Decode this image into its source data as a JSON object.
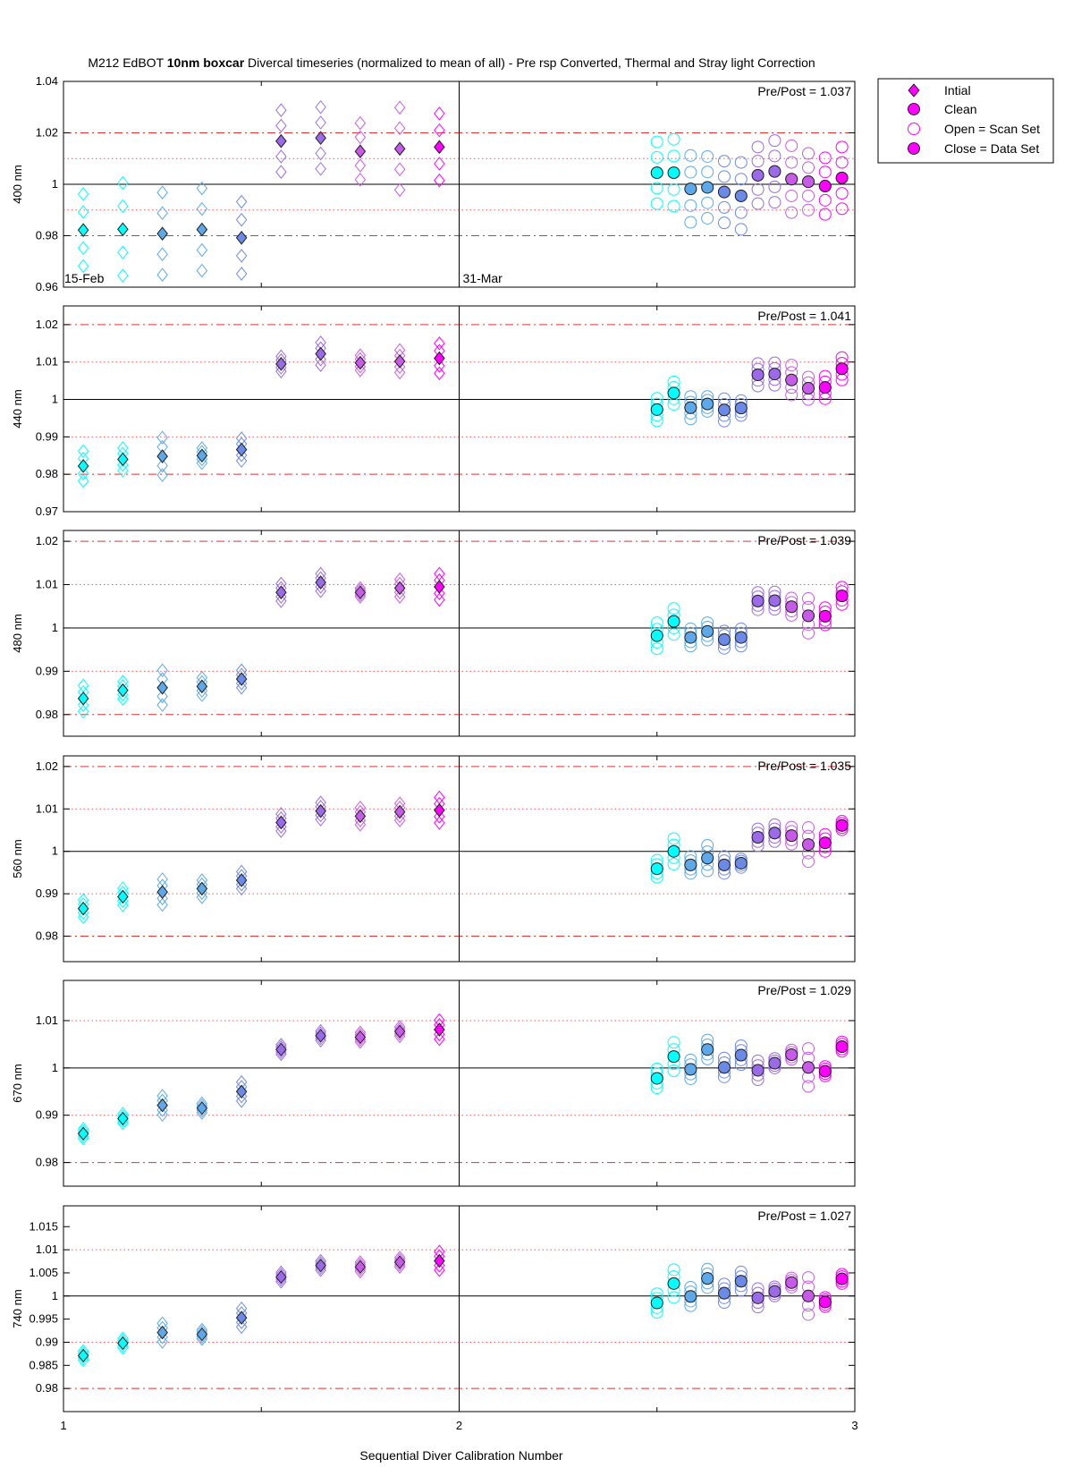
{
  "title": {
    "prefix": "M212  EdBOT",
    "bold": "10nm boxcar",
    "suffix": "Divercal timeseries (normalized to mean of all) - Pre rsp Converted, Thermal and Stray light Correction"
  },
  "xlabel": "Sequential Diver Calibration Number",
  "xticks": [
    "1",
    "2",
    "3"
  ],
  "xlim": [
    1,
    3
  ],
  "date_labels": [
    "15-Feb",
    "31-Mar"
  ],
  "colors": {
    "cyan": "#00ffff",
    "light_blue": "#5ca8e8",
    "blue": "#6b8ae8",
    "purple": "#9a6ae8",
    "violet": "#c85ae8",
    "magenta": "#ff00ff",
    "ref_dashdot": "#e53030",
    "ref_dotted": "#ff5555"
  },
  "legend": {
    "entries": [
      "Intial",
      "Clean",
      "Open = Scan Set",
      "Close = Data Set"
    ]
  },
  "chart_data": [
    {
      "type": "scatter",
      "ylabel": "400 nm",
      "ylim": [
        0.96,
        1.04
      ],
      "yticks": [
        "0.96",
        "0.98",
        "1",
        "1.02",
        "1.04"
      ],
      "ratio_text": "Pre/Post = 1.037",
      "show_dates": true,
      "ref_dashdot": [
        0.98,
        1.02
      ],
      "ref_dotted": [
        0.99,
        1.01
      ],
      "initial_means": [
        0.9822,
        0.9825,
        0.9808,
        0.9824,
        0.9792,
        1.0168,
        1.018,
        1.0128,
        1.0138,
        1.0145
      ],
      "initial_spread": [
        0.014,
        0.018,
        0.016,
        0.016,
        0.014,
        0.012,
        0.012,
        0.011,
        0.016,
        0.013
      ],
      "clean_means": [
        1.0045,
        1.0045,
        0.9982,
        0.9988,
        0.997,
        0.9955,
        1.0035,
        1.005,
        1.002,
        1.001,
        0.9993,
        1.0025
      ],
      "clean_spread": [
        0.012,
        0.013,
        0.013,
        0.012,
        0.012,
        0.013,
        0.011,
        0.012,
        0.013,
        0.011,
        0.011,
        0.012
      ]
    },
    {
      "type": "scatter",
      "ylabel": "440 nm",
      "ylim": [
        0.97,
        1.025
      ],
      "yticks": [
        "0.97",
        "0.98",
        "0.99",
        "1",
        "1.01",
        "1.02"
      ],
      "ratio_text": "Pre/Post = 1.041",
      "show_dates": false,
      "ref_dashdot": [
        0.98,
        1.02
      ],
      "ref_dotted": [
        0.99,
        1.01
      ],
      "initial_means": [
        0.9822,
        0.984,
        0.9848,
        0.985,
        0.9866,
        1.0095,
        1.0122,
        1.0098,
        1.0102,
        1.011
      ],
      "initial_spread": [
        0.004,
        0.003,
        0.005,
        0.002,
        0.003,
        0.002,
        0.003,
        0.002,
        0.003,
        0.004
      ],
      "clean_means": [
        0.9973,
        1.0017,
        0.9978,
        0.9988,
        0.9972,
        0.9977,
        1.0066,
        1.0068,
        1.0052,
        1.003,
        1.0032,
        1.0082
      ],
      "clean_spread": [
        0.003,
        0.003,
        0.003,
        0.002,
        0.003,
        0.002,
        0.003,
        0.003,
        0.004,
        0.003,
        0.003,
        0.003
      ]
    },
    {
      "type": "scatter",
      "ylabel": "480 nm",
      "ylim": [
        0.975,
        1.0225
      ],
      "yticks": [
        "0.98",
        "0.99",
        "1",
        "1.01",
        "1.02"
      ],
      "ratio_text": "Pre/Post = 1.039",
      "show_dates": false,
      "ref_dashdot": [
        0.98,
        1.02
      ],
      "ref_dotted": [
        0.99,
        1.01
      ],
      "initial_means": [
        0.9837,
        0.9856,
        0.9862,
        0.9865,
        0.9882,
        1.0082,
        1.0105,
        1.0082,
        1.0092,
        1.0095
      ],
      "initial_spread": [
        0.003,
        0.002,
        0.004,
        0.002,
        0.002,
        0.002,
        0.002,
        0.001,
        0.002,
        0.003
      ],
      "clean_means": [
        0.9982,
        1.0015,
        0.9978,
        0.9992,
        0.9973,
        0.9978,
        1.0062,
        1.0063,
        1.0049,
        1.0028,
        1.0027,
        1.0074
      ],
      "clean_spread": [
        0.003,
        0.003,
        0.002,
        0.002,
        0.002,
        0.002,
        0.002,
        0.002,
        0.002,
        0.004,
        0.002,
        0.002
      ]
    },
    {
      "type": "scatter",
      "ylabel": "560 nm",
      "ylim": [
        0.974,
        1.0225
      ],
      "yticks": [
        "0.98",
        "0.99",
        "1",
        "1.01",
        "1.02"
      ],
      "ratio_text": "Pre/Post = 1.035",
      "show_dates": false,
      "ref_dashdot": [
        0.98,
        1.02
      ],
      "ref_dotted": [
        0.99,
        1.01
      ],
      "initial_means": [
        0.9865,
        0.9893,
        0.9904,
        0.9912,
        0.9932,
        1.0068,
        1.0095,
        1.0083,
        1.0093,
        1.0097
      ],
      "initial_spread": [
        0.002,
        0.002,
        0.003,
        0.002,
        0.002,
        0.002,
        0.002,
        0.002,
        0.002,
        0.003
      ],
      "clean_means": [
        0.9959,
        1.0,
        0.9968,
        0.9984,
        0.9968,
        0.9972,
        1.0033,
        1.0043,
        1.0037,
        1.0016,
        1.002,
        1.0061
      ],
      "clean_spread": [
        0.002,
        0.003,
        0.002,
        0.003,
        0.002,
        0.001,
        0.002,
        0.002,
        0.002,
        0.004,
        0.002,
        0.001
      ]
    },
    {
      "type": "scatter",
      "ylabel": "670 nm",
      "ylim": [
        0.975,
        1.0185
      ],
      "yticks": [
        "0.98",
        "0.99",
        "1",
        "1.01"
      ],
      "ratio_text": "Pre/Post = 1.029",
      "show_dates": false,
      "ref_dashdot": [
        0.98
      ],
      "ref_dotted": [
        0.99,
        1.01
      ],
      "initial_means": [
        0.9861,
        0.9893,
        0.9921,
        0.9915,
        0.995,
        1.0039,
        1.0068,
        1.0065,
        1.0077,
        1.0081
      ],
      "initial_spread": [
        0.001,
        0.001,
        0.002,
        0.001,
        0.002,
        0.001,
        0.001,
        0.001,
        0.001,
        0.002
      ],
      "clean_means": [
        0.9978,
        1.0024,
        0.9997,
        1.0039,
        1.0001,
        1.0027,
        0.9995,
        1.001,
        1.0028,
        1.0001,
        0.9993,
        1.0045
      ],
      "clean_spread": [
        0.002,
        0.003,
        0.002,
        0.002,
        0.002,
        0.002,
        0.002,
        0.001,
        0.001,
        0.004,
        0.001,
        0.001
      ]
    },
    {
      "type": "scatter",
      "ylabel": "740 nm",
      "ylim": [
        0.975,
        1.0195
      ],
      "yticks": [
        "0.98",
        "0.985",
        "0.99",
        "0.995",
        "1",
        "1.005",
        "1.01",
        "1.015"
      ],
      "ratio_text": "Pre/Post = 1.027",
      "show_dates": false,
      "ref_dashdot": [
        0.98
      ],
      "ref_dotted": [
        0.99,
        1.01
      ],
      "initial_means": [
        0.9871,
        0.9898,
        0.9921,
        0.9917,
        0.9953,
        1.0041,
        1.0066,
        1.0063,
        1.0073,
        1.0076
      ],
      "initial_spread": [
        0.001,
        0.001,
        0.002,
        0.001,
        0.002,
        0.001,
        0.001,
        0.001,
        0.001,
        0.002
      ],
      "clean_means": [
        0.9985,
        1.0027,
        0.9999,
        1.0038,
        1.0006,
        1.0032,
        0.9996,
        1.001,
        1.0029,
        1.0,
        0.9987,
        1.0037
      ],
      "clean_spread": [
        0.002,
        0.003,
        0.002,
        0.002,
        0.002,
        0.002,
        0.002,
        0.001,
        0.001,
        0.004,
        0.001,
        0.001
      ]
    }
  ]
}
